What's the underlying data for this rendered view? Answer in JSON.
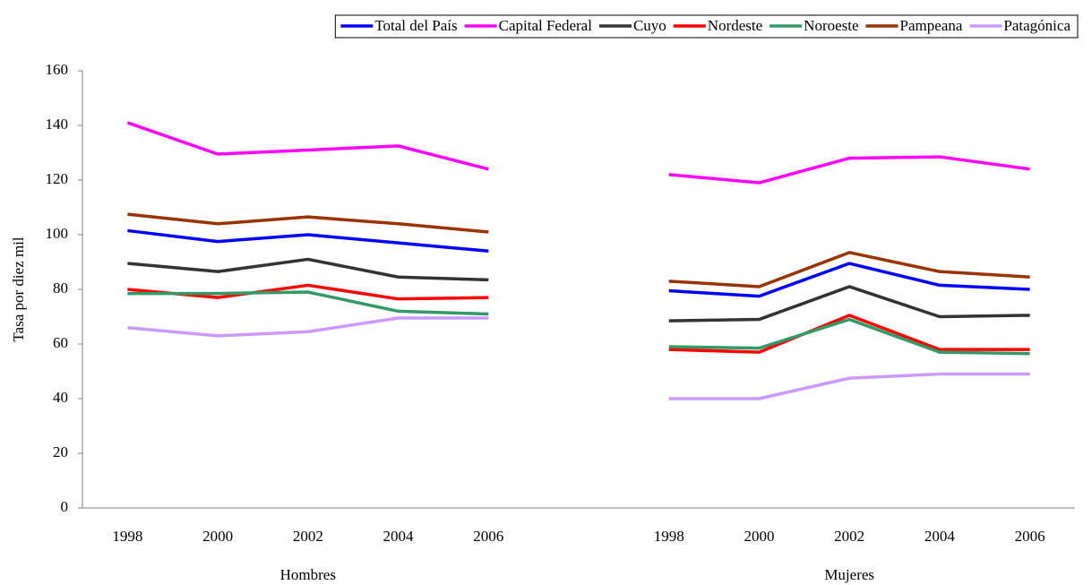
{
  "chart_data": {
    "type": "line",
    "y_label": "Tasa por diez mil",
    "groups": [
      "Hombres",
      "Mujeres"
    ],
    "categories": [
      "1998",
      "2000",
      "2002",
      "2004",
      "2006",
      null,
      "1998",
      "2000",
      "2002",
      "2004",
      "2006"
    ],
    "ylim": [
      0,
      160
    ],
    "yticks": [
      0,
      20,
      40,
      60,
      80,
      100,
      120,
      140,
      160
    ],
    "legend": "top-right",
    "series": [
      {
        "name": "Total del País",
        "color": "#0000ff",
        "values": [
          101.5,
          97.5,
          100,
          97,
          94,
          null,
          79.5,
          77.5,
          89.5,
          81.5,
          80
        ]
      },
      {
        "name": "Capital Federal",
        "color": "#ff00ff",
        "values": [
          141,
          129.5,
          131,
          132.5,
          124,
          null,
          122,
          119,
          128,
          128.5,
          124
        ]
      },
      {
        "name": "Cuyo",
        "color": "#333333",
        "values": [
          89.5,
          86.5,
          91,
          84.5,
          83.5,
          null,
          68.5,
          69,
          81,
          70,
          70.5
        ]
      },
      {
        "name": "Nordeste",
        "color": "#ff0000",
        "values": [
          80,
          77,
          81.5,
          76.5,
          77,
          null,
          58,
          57,
          70.5,
          58,
          58
        ]
      },
      {
        "name": "Noroeste",
        "color": "#339966",
        "values": [
          78.5,
          78.5,
          79,
          72,
          71,
          null,
          59,
          58.5,
          69,
          57,
          56.5
        ]
      },
      {
        "name": "Pampeana",
        "color": "#993300",
        "values": [
          107.5,
          104,
          106.5,
          104,
          101,
          null,
          83,
          81,
          93.5,
          86.5,
          84.5
        ]
      },
      {
        "name": "Patagónica",
        "color": "#cc99ff",
        "values": [
          66,
          63,
          64.5,
          69.5,
          69.5,
          null,
          40,
          40,
          47.5,
          49,
          49
        ]
      }
    ]
  }
}
